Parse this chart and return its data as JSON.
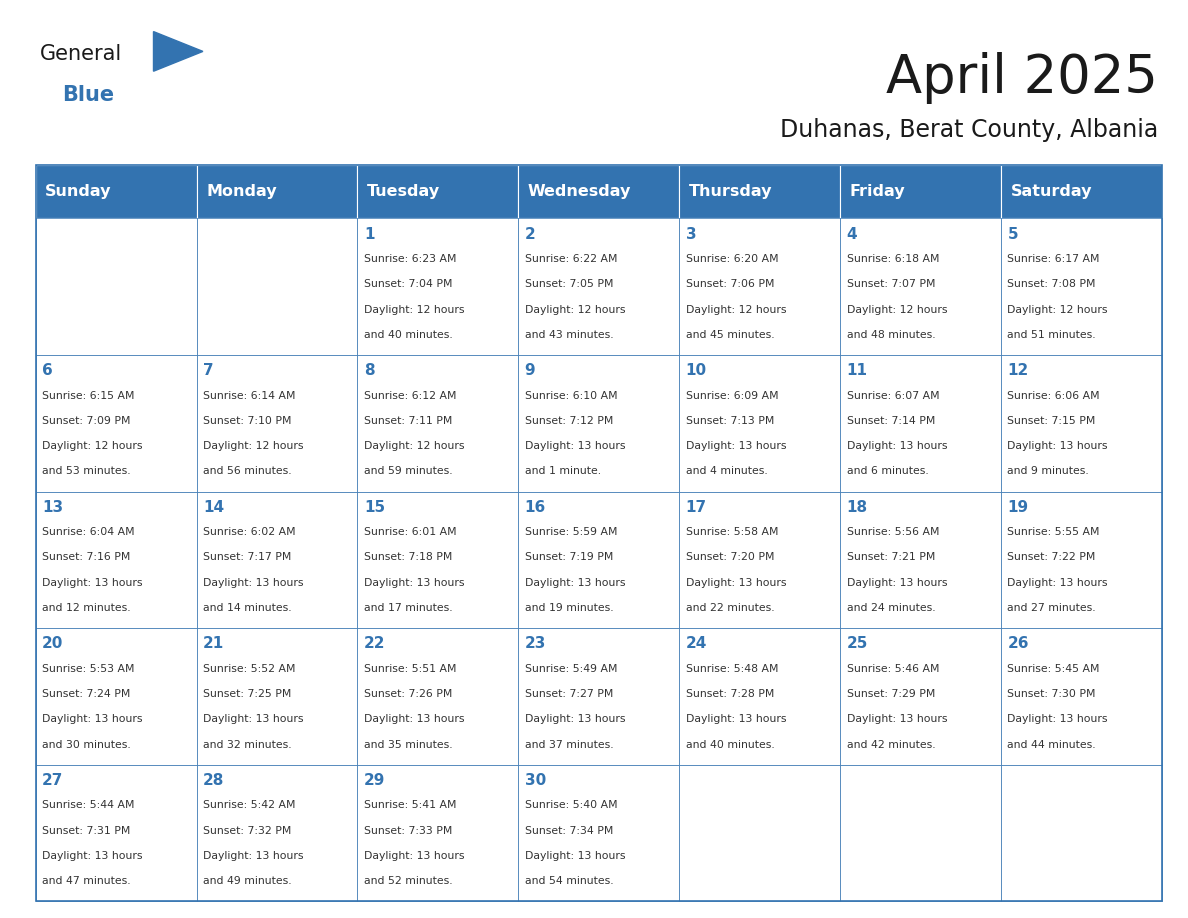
{
  "title": "April 2025",
  "subtitle": "Duhanas, Berat County, Albania",
  "header_bg": "#3373B0",
  "header_text_color": "#FFFFFF",
  "border_color": "#3373B0",
  "days_of_week": [
    "Sunday",
    "Monday",
    "Tuesday",
    "Wednesday",
    "Thursday",
    "Friday",
    "Saturday"
  ],
  "title_color": "#1a1a1a",
  "subtitle_color": "#1a1a1a",
  "day_number_color": "#3373B0",
  "cell_text_color": "#333333",
  "calendar_data": [
    [
      {
        "day": null,
        "info": ""
      },
      {
        "day": null,
        "info": ""
      },
      {
        "day": 1,
        "info": "Sunrise: 6:23 AM\nSunset: 7:04 PM\nDaylight: 12 hours\nand 40 minutes."
      },
      {
        "day": 2,
        "info": "Sunrise: 6:22 AM\nSunset: 7:05 PM\nDaylight: 12 hours\nand 43 minutes."
      },
      {
        "day": 3,
        "info": "Sunrise: 6:20 AM\nSunset: 7:06 PM\nDaylight: 12 hours\nand 45 minutes."
      },
      {
        "day": 4,
        "info": "Sunrise: 6:18 AM\nSunset: 7:07 PM\nDaylight: 12 hours\nand 48 minutes."
      },
      {
        "day": 5,
        "info": "Sunrise: 6:17 AM\nSunset: 7:08 PM\nDaylight: 12 hours\nand 51 minutes."
      }
    ],
    [
      {
        "day": 6,
        "info": "Sunrise: 6:15 AM\nSunset: 7:09 PM\nDaylight: 12 hours\nand 53 minutes."
      },
      {
        "day": 7,
        "info": "Sunrise: 6:14 AM\nSunset: 7:10 PM\nDaylight: 12 hours\nand 56 minutes."
      },
      {
        "day": 8,
        "info": "Sunrise: 6:12 AM\nSunset: 7:11 PM\nDaylight: 12 hours\nand 59 minutes."
      },
      {
        "day": 9,
        "info": "Sunrise: 6:10 AM\nSunset: 7:12 PM\nDaylight: 13 hours\nand 1 minute."
      },
      {
        "day": 10,
        "info": "Sunrise: 6:09 AM\nSunset: 7:13 PM\nDaylight: 13 hours\nand 4 minutes."
      },
      {
        "day": 11,
        "info": "Sunrise: 6:07 AM\nSunset: 7:14 PM\nDaylight: 13 hours\nand 6 minutes."
      },
      {
        "day": 12,
        "info": "Sunrise: 6:06 AM\nSunset: 7:15 PM\nDaylight: 13 hours\nand 9 minutes."
      }
    ],
    [
      {
        "day": 13,
        "info": "Sunrise: 6:04 AM\nSunset: 7:16 PM\nDaylight: 13 hours\nand 12 minutes."
      },
      {
        "day": 14,
        "info": "Sunrise: 6:02 AM\nSunset: 7:17 PM\nDaylight: 13 hours\nand 14 minutes."
      },
      {
        "day": 15,
        "info": "Sunrise: 6:01 AM\nSunset: 7:18 PM\nDaylight: 13 hours\nand 17 minutes."
      },
      {
        "day": 16,
        "info": "Sunrise: 5:59 AM\nSunset: 7:19 PM\nDaylight: 13 hours\nand 19 minutes."
      },
      {
        "day": 17,
        "info": "Sunrise: 5:58 AM\nSunset: 7:20 PM\nDaylight: 13 hours\nand 22 minutes."
      },
      {
        "day": 18,
        "info": "Sunrise: 5:56 AM\nSunset: 7:21 PM\nDaylight: 13 hours\nand 24 minutes."
      },
      {
        "day": 19,
        "info": "Sunrise: 5:55 AM\nSunset: 7:22 PM\nDaylight: 13 hours\nand 27 minutes."
      }
    ],
    [
      {
        "day": 20,
        "info": "Sunrise: 5:53 AM\nSunset: 7:24 PM\nDaylight: 13 hours\nand 30 minutes."
      },
      {
        "day": 21,
        "info": "Sunrise: 5:52 AM\nSunset: 7:25 PM\nDaylight: 13 hours\nand 32 minutes."
      },
      {
        "day": 22,
        "info": "Sunrise: 5:51 AM\nSunset: 7:26 PM\nDaylight: 13 hours\nand 35 minutes."
      },
      {
        "day": 23,
        "info": "Sunrise: 5:49 AM\nSunset: 7:27 PM\nDaylight: 13 hours\nand 37 minutes."
      },
      {
        "day": 24,
        "info": "Sunrise: 5:48 AM\nSunset: 7:28 PM\nDaylight: 13 hours\nand 40 minutes."
      },
      {
        "day": 25,
        "info": "Sunrise: 5:46 AM\nSunset: 7:29 PM\nDaylight: 13 hours\nand 42 minutes."
      },
      {
        "day": 26,
        "info": "Sunrise: 5:45 AM\nSunset: 7:30 PM\nDaylight: 13 hours\nand 44 minutes."
      }
    ],
    [
      {
        "day": 27,
        "info": "Sunrise: 5:44 AM\nSunset: 7:31 PM\nDaylight: 13 hours\nand 47 minutes."
      },
      {
        "day": 28,
        "info": "Sunrise: 5:42 AM\nSunset: 7:32 PM\nDaylight: 13 hours\nand 49 minutes."
      },
      {
        "day": 29,
        "info": "Sunrise: 5:41 AM\nSunset: 7:33 PM\nDaylight: 13 hours\nand 52 minutes."
      },
      {
        "day": 30,
        "info": "Sunrise: 5:40 AM\nSunset: 7:34 PM\nDaylight: 13 hours\nand 54 minutes."
      },
      {
        "day": null,
        "info": ""
      },
      {
        "day": null,
        "info": ""
      },
      {
        "day": null,
        "info": ""
      }
    ]
  ]
}
